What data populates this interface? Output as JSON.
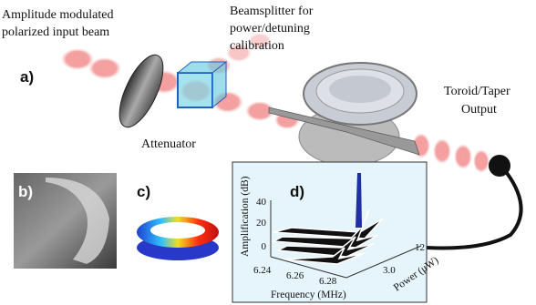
{
  "labels": {
    "input_beam": [
      "Amplitude modulated",
      "polarized input beam"
    ],
    "beamsplitter": [
      "Beamsplitter for",
      "power/detuning",
      "calibration"
    ],
    "attenuator": "Attenuator",
    "output": [
      "Toroid/Taper",
      "Output"
    ]
  },
  "panels": [
    "a)",
    "b)",
    "c)",
    "d)"
  ],
  "plot": {
    "y_label": "Amplification (dB)",
    "x_label": "Frequency (MHz)",
    "z_label": "Power (μW)",
    "yticks": [
      0,
      20,
      40
    ],
    "xticks": [
      6.24,
      6.26,
      6.28
    ],
    "zticks": [
      {
        "value": 3.0,
        "label": "3.0"
      },
      12
    ]
  }
}
